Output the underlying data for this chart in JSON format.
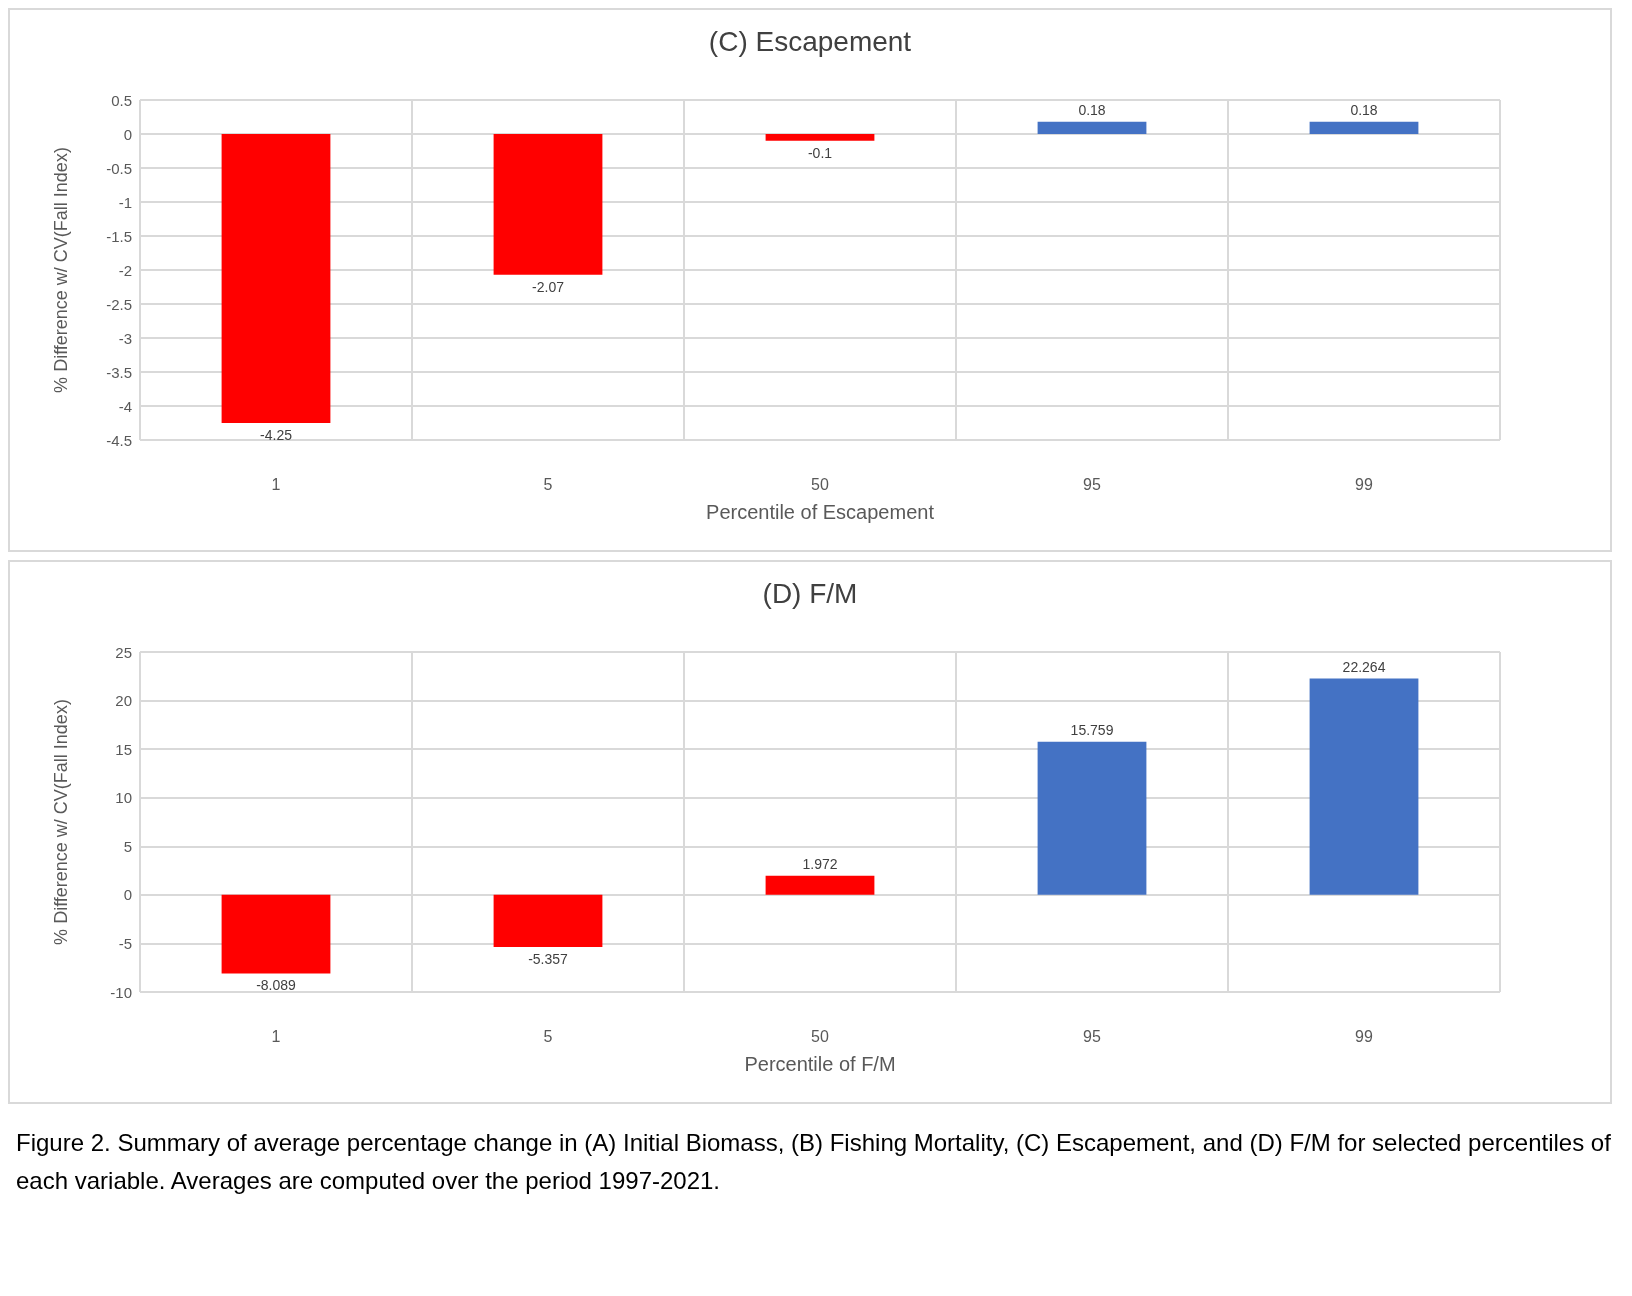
{
  "chart_data": [
    {
      "type": "bar",
      "title": "(C) Escapement",
      "xlabel": "Percentile of Escapement",
      "ylabel": "% Difference w/ CV(Fall Index)",
      "categories": [
        "1",
        "5",
        "50",
        "95",
        "99"
      ],
      "values": [
        -4.25,
        -2.07,
        -0.1,
        0.18,
        0.18
      ],
      "colors": [
        "#ff0000",
        "#ff0000",
        "#ff0000",
        "#4472c4",
        "#4472c4"
      ],
      "ylim": [
        -4.5,
        0.5
      ],
      "yticks": [
        -4.5,
        -4,
        -3.5,
        -3,
        -2.5,
        -2,
        -1.5,
        -1,
        -0.5,
        0,
        0.5
      ],
      "grid": true,
      "data_labels": true
    },
    {
      "type": "bar",
      "title": "(D) F/M",
      "xlabel": "Percentile of F/M",
      "ylabel": "% Difference w/ CV(Fall Index)",
      "categories": [
        "1",
        "5",
        "50",
        "95",
        "99"
      ],
      "values": [
        -8.089,
        -5.357,
        1.972,
        15.759,
        22.264
      ],
      "colors": [
        "#ff0000",
        "#ff0000",
        "#ff0000",
        "#4472c4",
        "#4472c4"
      ],
      "ylim": [
        -10,
        25
      ],
      "yticks": [
        -10,
        -5,
        0,
        5,
        10,
        15,
        20,
        25
      ],
      "grid": true,
      "data_labels": true,
      "annotations": [
        "Figure 2.  Summary of average percentage change in (A) Initial Biomass, (B) Fishing Mortality, (C) Escapement, and (D) F/M for selected percentiles of each variable.  Averages are computed over the period 1997-2021."
      ]
    }
  ]
}
